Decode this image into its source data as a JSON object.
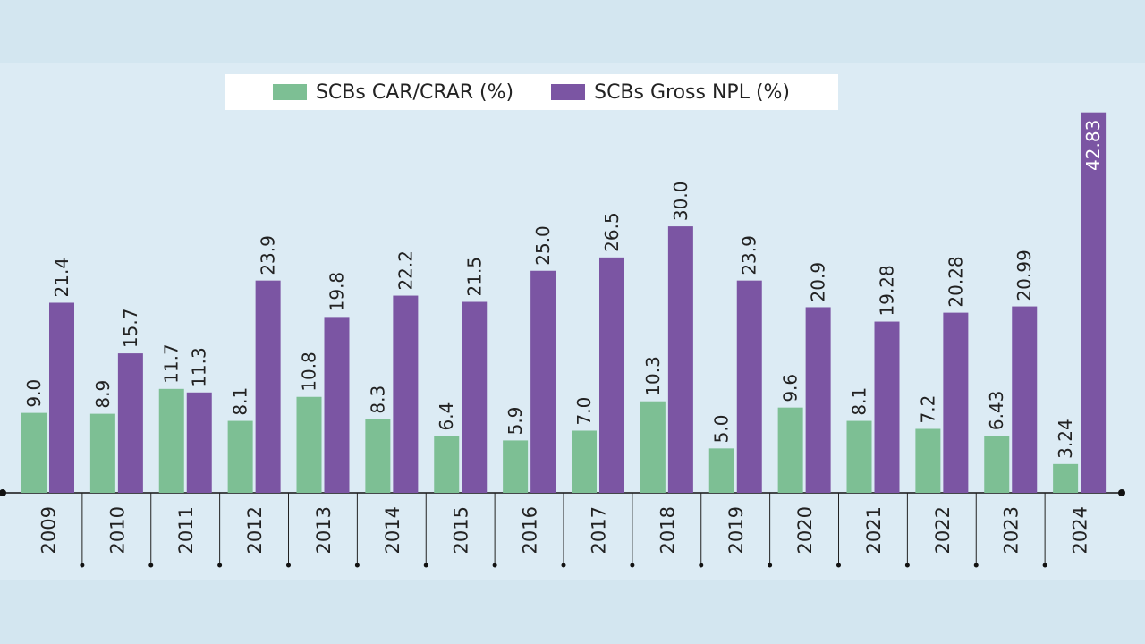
{
  "chart_data": {
    "type": "bar",
    "categories": [
      "2009",
      "2010",
      "2011",
      "2012",
      "2013",
      "2014",
      "2015",
      "2016",
      "2017",
      "2018",
      "2019",
      "2020",
      "2021",
      "2022",
      "2023",
      "2024"
    ],
    "series": [
      {
        "name": "SCBs CAR/CRAR (%)",
        "color": "#7dbf94",
        "values": [
          9.0,
          8.9,
          11.7,
          8.1,
          10.8,
          8.3,
          6.4,
          5.9,
          7.0,
          10.3,
          5.0,
          9.6,
          8.1,
          7.2,
          6.43,
          3.24
        ],
        "labels": [
          "9.0",
          "8.9",
          "11.7",
          "8.1",
          "10.8",
          "8.3",
          "6.4",
          "5.9",
          "7.0",
          "10.3",
          "5.0",
          "9.6",
          "8.1",
          "7.2",
          "6.43",
          "3.24"
        ]
      },
      {
        "name": "SCBs Gross NPL (%)",
        "color": "#7b55a3",
        "values": [
          21.4,
          15.7,
          11.3,
          23.9,
          19.8,
          22.2,
          21.5,
          25.0,
          26.5,
          30.0,
          23.9,
          20.9,
          19.28,
          20.28,
          20.99,
          42.83
        ],
        "labels": [
          "21.4",
          "15.7",
          "11.3",
          "23.9",
          "19.8",
          "22.2",
          "21.5",
          "25.0",
          "26.5",
          "30.0",
          "23.9",
          "20.9",
          "19.28",
          "20.28",
          "20.99",
          "42.83"
        ]
      }
    ],
    "ylim": [
      0,
      43
    ],
    "legend": "top-center",
    "grid": false
  }
}
